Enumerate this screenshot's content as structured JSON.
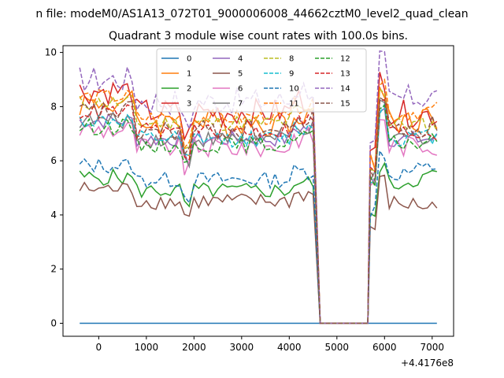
{
  "chart_data": {
    "type": "line",
    "suptitle": "n file: modeM0/AS1A13_072T01_9000006008_44662cztM0_level2_quad_clean",
    "title": "Quadrant 3 module wise count rates with 100.0s bins.",
    "xlabel": "",
    "ylabel": "",
    "offset_label": "+4.4176e8",
    "xlim": [
      -750,
      7450
    ],
    "ylim": [
      -0.48,
      10.25
    ],
    "xticks": [
      0,
      1000,
      2000,
      3000,
      4000,
      5000,
      6000,
      7000
    ],
    "yticks": [
      0,
      2,
      4,
      6,
      8,
      10
    ],
    "legend_position": "upper-center",
    "segments": [
      {
        "start": -400,
        "end": 4550
      },
      {
        "start": 5700,
        "end": 7100
      }
    ],
    "gap_x": [
      4650,
      5650
    ],
    "series": [
      {
        "name": "0",
        "color": "#1f77b4",
        "dash": "solid",
        "base": 0,
        "amp": 0,
        "end": 0
      },
      {
        "name": "1",
        "color": "#ff7f0e",
        "dash": "solid",
        "base": 7.4,
        "amp": 0.5,
        "end": 7.6
      },
      {
        "name": "2",
        "color": "#2ca02c",
        "dash": "solid",
        "base": 4.9,
        "amp": 0.3,
        "end": 5.5
      },
      {
        "name": "3",
        "color": "#d62728",
        "dash": "solid",
        "base": 7.8,
        "amp": 0.5,
        "end": 7.7
      },
      {
        "name": "4",
        "color": "#9467bd",
        "dash": "solid",
        "base": 6.8,
        "amp": 0.3,
        "end": 6.8
      },
      {
        "name": "5",
        "color": "#8c564b",
        "dash": "solid",
        "base": 4.5,
        "amp": 0.3,
        "end": 4.3
      },
      {
        "name": "6",
        "color": "#e377c2",
        "dash": "solid",
        "base": 6.5,
        "amp": 0.4,
        "end": 6.6
      },
      {
        "name": "7",
        "color": "#7f7f7f",
        "dash": "solid",
        "base": 6.8,
        "amp": 0.3,
        "end": 6.9
      },
      {
        "name": "8",
        "color": "#bcbd22",
        "dash": "dashed",
        "base": 7.4,
        "amp": 0.3,
        "end": 7.3
      },
      {
        "name": "9",
        "color": "#17becf",
        "dash": "dashed",
        "base": 6.8,
        "amp": 0.3,
        "end": 6.9
      },
      {
        "name": "10",
        "color": "#1f77b4",
        "dash": "dashed",
        "base": 5.3,
        "amp": 0.3,
        "end": 5.8
      },
      {
        "name": "11",
        "color": "#ff7f0e",
        "dash": "dashed",
        "base": 7.6,
        "amp": 0.3,
        "end": 7.9
      },
      {
        "name": "12",
        "color": "#2ca02c",
        "dash": "dashed",
        "base": 6.6,
        "amp": 0.3,
        "end": 6.7
      },
      {
        "name": "13",
        "color": "#d62728",
        "dash": "dashed",
        "base": 7.1,
        "amp": 0.3,
        "end": 7.0
      },
      {
        "name": "14",
        "color": "#9467bd",
        "dash": "dashed",
        "base": 8.2,
        "amp": 0.5,
        "end": 8.4
      },
      {
        "name": "15",
        "color": "#8c564b",
        "dash": "dashed",
        "base": 7.1,
        "amp": 0.4,
        "end": 7.3
      }
    ]
  }
}
